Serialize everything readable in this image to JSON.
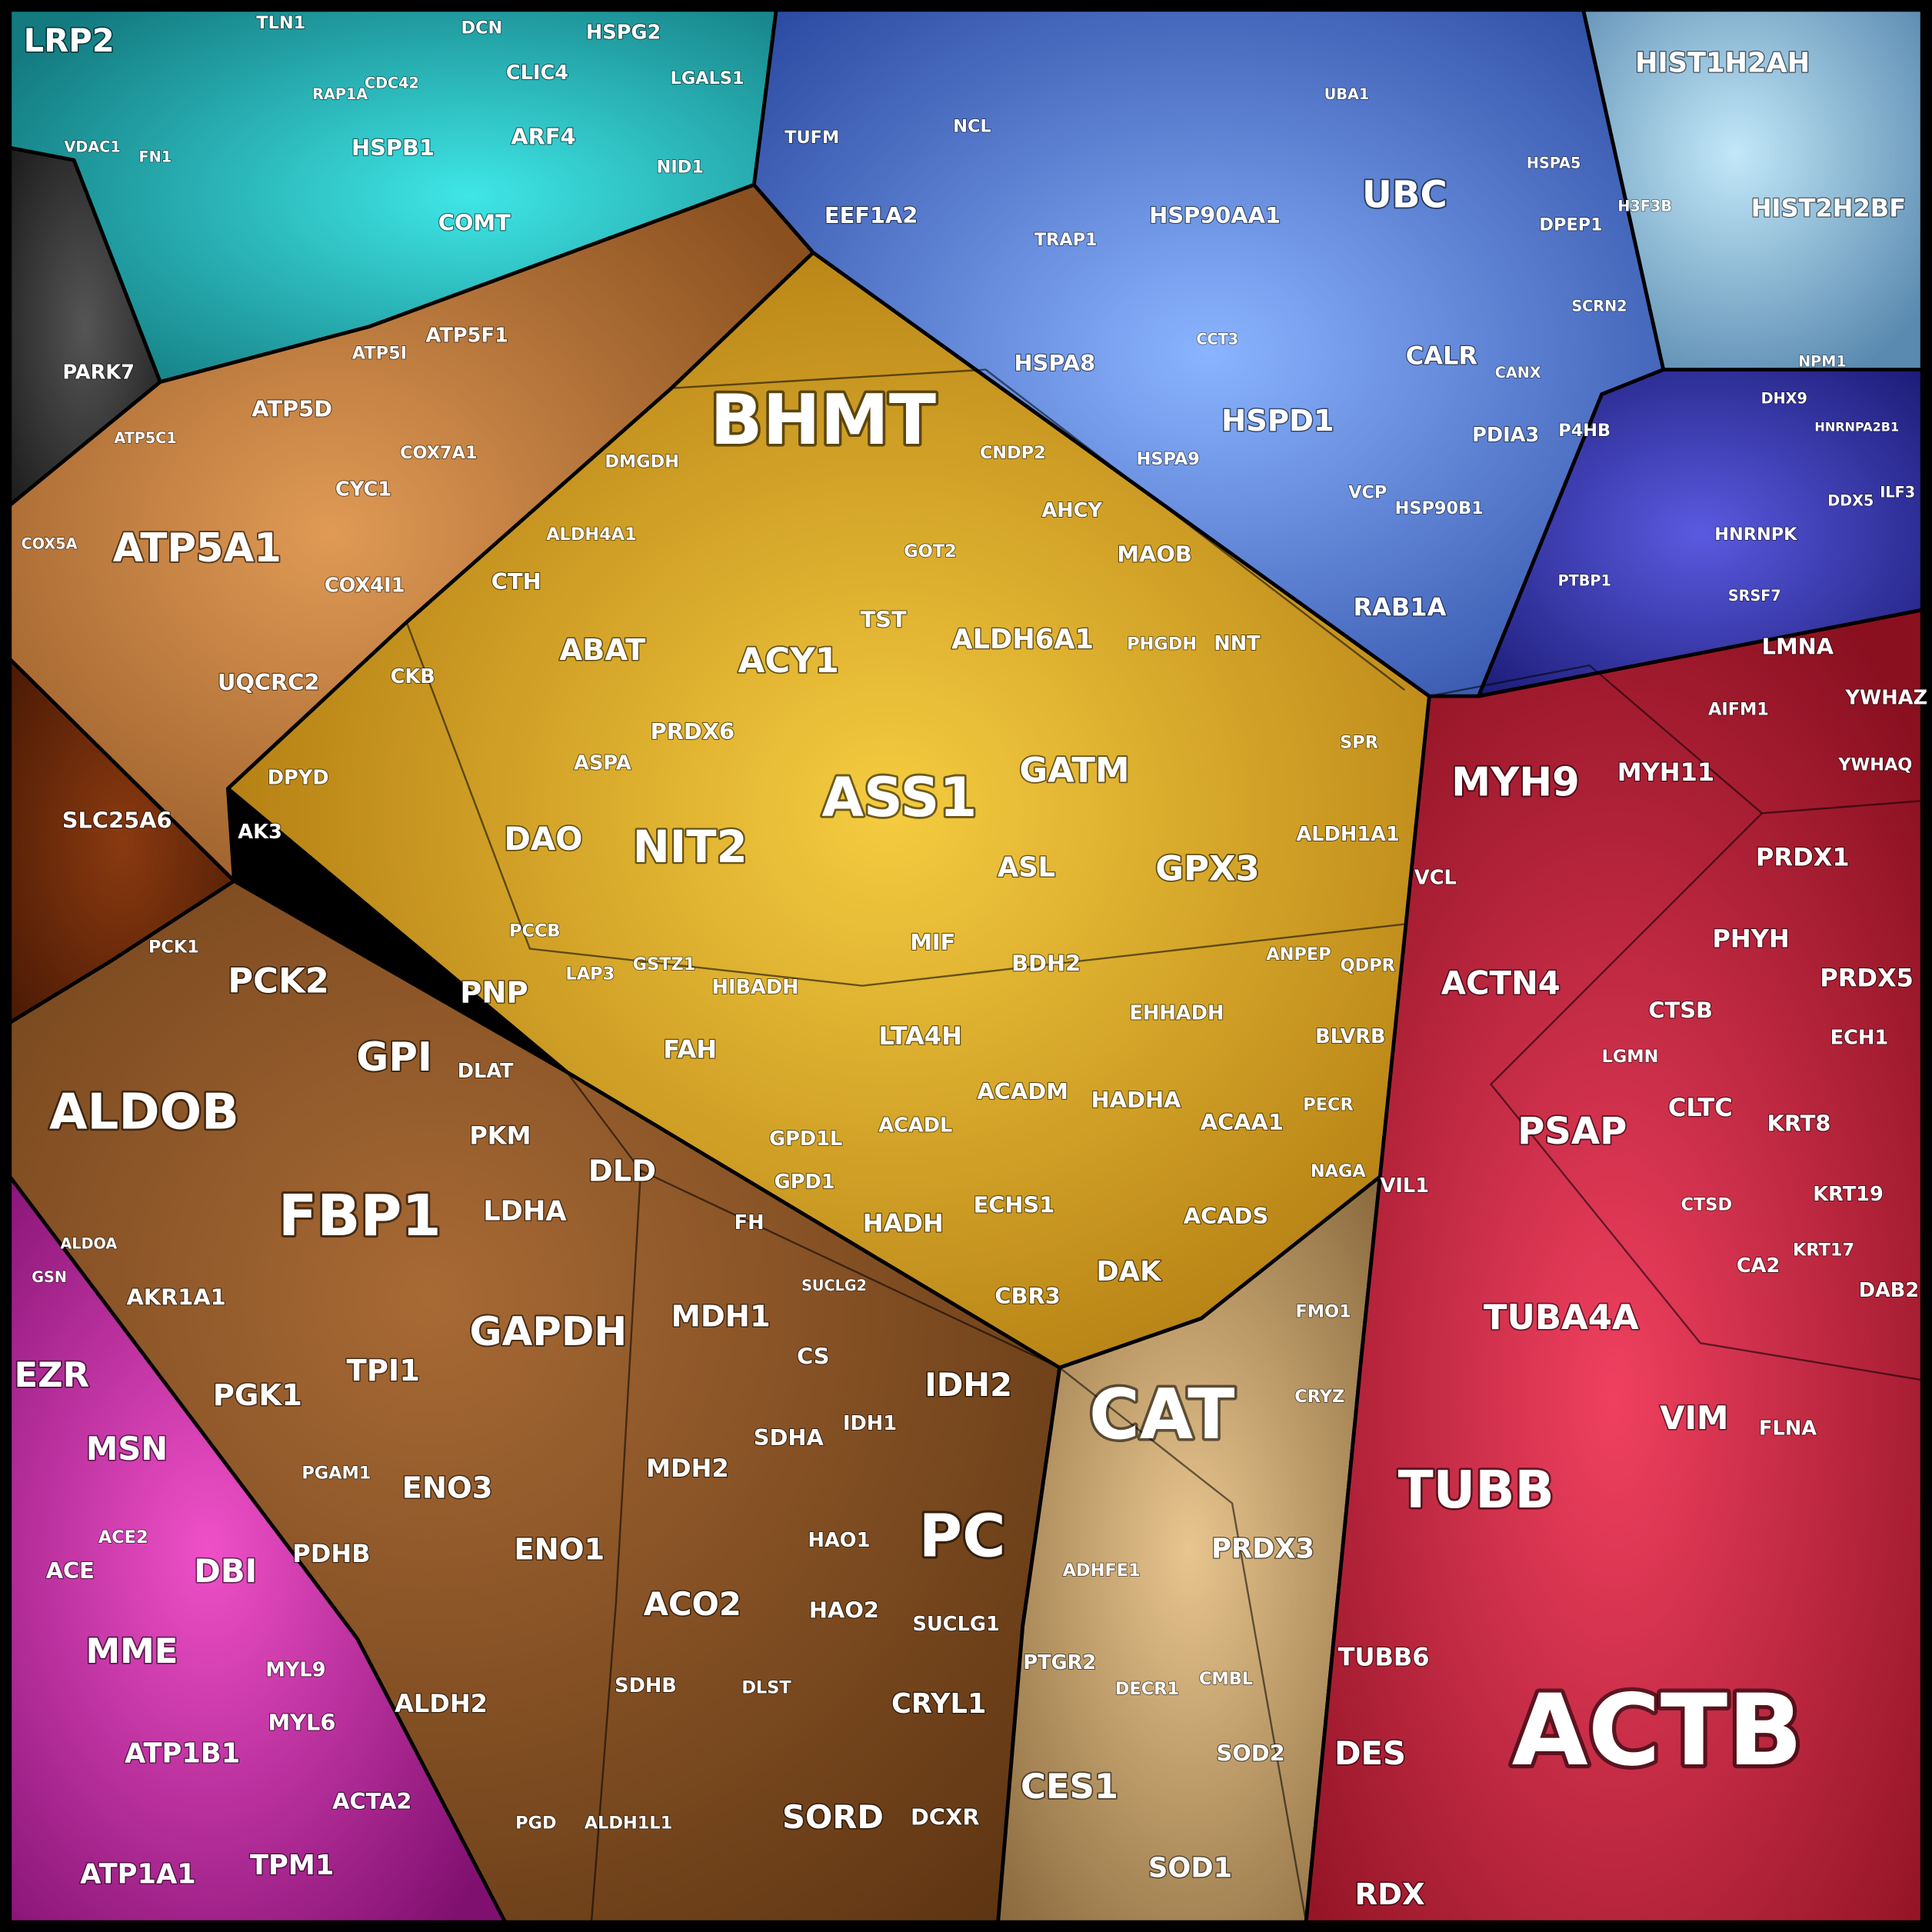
{
  "cells": [
    "BHMT",
    "ASS1",
    "ACTB",
    "ALDOB",
    "FBP1",
    "CAT",
    "TUBB",
    "PC",
    "NIT2",
    "GAPDH",
    "GPI",
    "ATP5A1",
    "MYH9",
    "HSP90AA1",
    "UBC",
    "HSPD1",
    "HIST1H2AH",
    "HIST2H2BF",
    "LRP2",
    "EZR",
    "MSN",
    "MME",
    "DBI",
    "ATP1B1",
    "ATP1A1",
    "TPM1",
    "ACTA2",
    "MYL6",
    "MYL9",
    "ACE",
    "ACE2",
    "ACTN4",
    "TUBA4A",
    "VIM",
    "DES",
    "RDX",
    "TUBB6",
    "VIL1",
    "PSAP",
    "CLTC",
    "KRT8",
    "KRT19",
    "KRT17",
    "DAB2",
    "CA2",
    "FLNA",
    "CTSB",
    "LGMN",
    "CTSD",
    "PRDX1",
    "PHYH",
    "PRDX5",
    "ECH1",
    "YWHAZ",
    "YWHAQ",
    "LMNA",
    "AIFM1",
    "MYH11",
    "VCL",
    "PRDX3",
    "CES1",
    "SOD1",
    "SOD2",
    "ADHFE1",
    "PTGR2",
    "DECR1",
    "CMBL",
    "FMO1",
    "CRYZ",
    "DAK",
    "ACADS",
    "ACAA1",
    "HADHA",
    "ACADM",
    "ECHS1",
    "HADH",
    "CBR3",
    "GPD1",
    "GPD1L",
    "ACADL",
    "LTA4H",
    "EHHADH",
    "BDH2",
    "PECR",
    "NAGA",
    "BLVRB",
    "ANPEP",
    "QDPR",
    "GPX3",
    "ALDH1A1",
    "GATM",
    "ASL",
    "MIF",
    "ALDH6A1",
    "MAOB",
    "AHCY",
    "CNDP2",
    "TST",
    "ACY1",
    "ABAT",
    "PRDX6",
    "DAO",
    "CTH",
    "ALDH4A1",
    "DMGDH",
    "GOT2",
    "PHGDH",
    "NNT",
    "SPR",
    "HIBADH",
    "FAH",
    "GSTZ1",
    "LAP3",
    "PNP",
    "PCCB",
    "ASPA",
    "CKB",
    "DPYD",
    "AK3",
    "PCK2",
    "PCK1",
    "DLAT",
    "PKM",
    "DLD",
    "LDHA",
    "AKR1A1",
    "PGK1",
    "TPI1",
    "ENO3",
    "ENO1",
    "PDHB",
    "PGAM1",
    "ALDH2",
    "MDH1",
    "CS",
    "SDHA",
    "MDH2",
    "IDH2",
    "IDH1",
    "HAO1",
    "HAO2",
    "SUCLG1",
    "SUCLG2",
    "ACO2",
    "SDHB",
    "DLST",
    "CRYL1",
    "SORD",
    "DCXR",
    "ALDH1L1",
    "PGD",
    "FH",
    "ATP5D",
    "ATP5F1",
    "ATP5I",
    "ATP5C1",
    "CYC1",
    "COX7A1",
    "COX4I1",
    "UQCRC2",
    "COX5A",
    "SLC25A6",
    "PARK7",
    "HSPB1",
    "CLIC4",
    "ARF4",
    "COMT",
    "NID1",
    "LGALS1",
    "HSPG2",
    "TLN1",
    "DCN",
    "CDC42",
    "RAP1A",
    "VDAC1",
    "FN1",
    "EEF1A2",
    "TUFM",
    "HSPA8",
    "HSPA9",
    "TRAP1",
    "CCT3",
    "CALR",
    "PDIA3",
    "P4HB",
    "CANX",
    "HSP90B1",
    "VCP",
    "RAB1A",
    "DPEP1",
    "SCRN2",
    "HSPA5",
    "NCL",
    "UBA1",
    "HNRNPK",
    "DHX9",
    "NPM1",
    "SRSF7",
    "PTBP1",
    "ILF3",
    "DDX5",
    "HNRNPA2B1",
    "H3F3B",
    "GSN",
    "ALDOA"
  ]
}
